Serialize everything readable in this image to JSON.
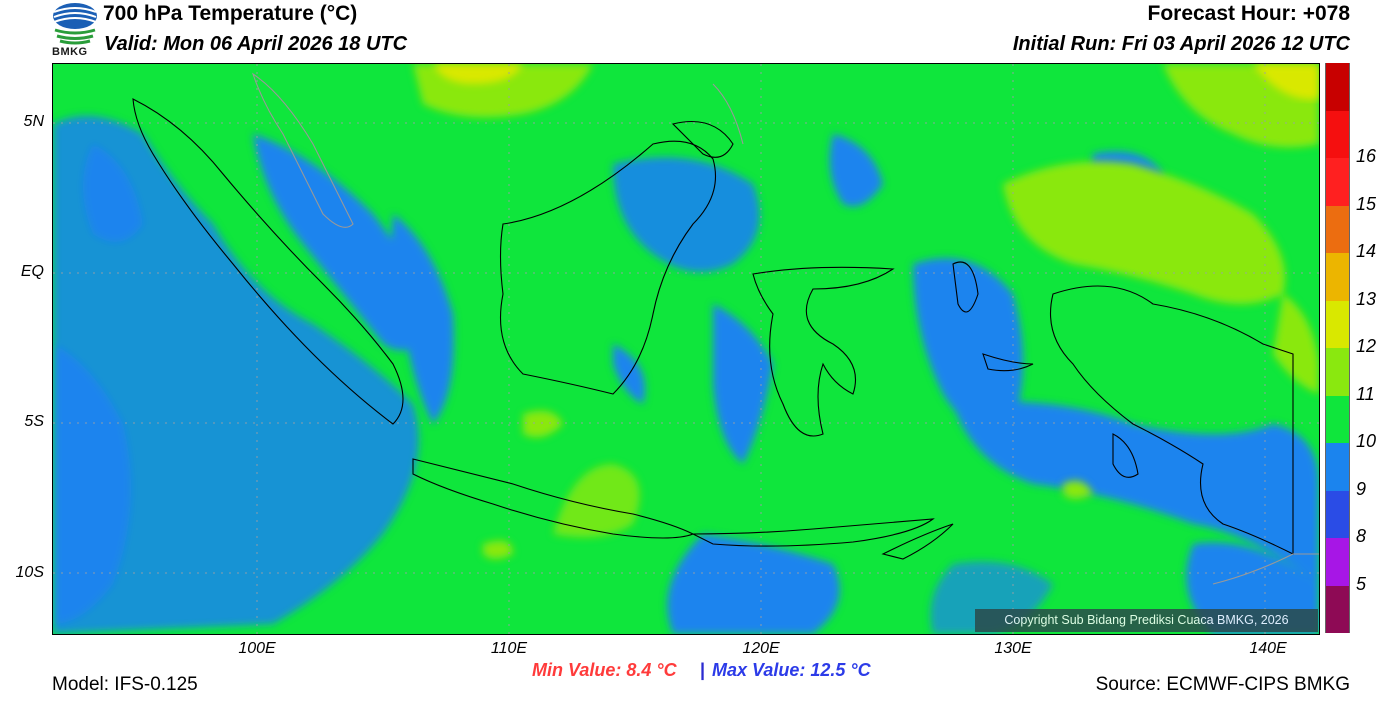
{
  "header": {
    "logo_text": "BMKG",
    "title": "700 hPa Temperature (°C)",
    "valid": "Valid: Mon 06 April 2026 18 UTC",
    "forecast_hour": "Forecast Hour: +078",
    "initial_run": "Initial Run: Fri 03 April 2026 12 UTC"
  },
  "map": {
    "lat_labels": [
      "5N",
      "EQ",
      "5S",
      "10S"
    ],
    "lon_labels": [
      "100E",
      "110E",
      "120E",
      "130E",
      "140E"
    ],
    "copyright": "Copyright Sub Bidang Prediksi Cuaca BMKG, 2026"
  },
  "colorbar": {
    "levels": [
      {
        "label": "",
        "color": "#c80000"
      },
      {
        "label": "16",
        "color": "#f50f0f"
      },
      {
        "label": "15",
        "color": "#ff2020"
      },
      {
        "label": "14",
        "color": "#ec6d10"
      },
      {
        "label": "13",
        "color": "#ecb500"
      },
      {
        "label": "12",
        "color": "#d9e800"
      },
      {
        "label": "11",
        "color": "#8ae80f"
      },
      {
        "label": "10",
        "color": "#0fe63c"
      },
      {
        "label": "9",
        "color": "#1b84ee"
      },
      {
        "label": "8",
        "color": "#2a4ce6"
      },
      {
        "label": "5",
        "color": "#a716e6"
      },
      {
        "label": "",
        "color": "#8e0a55"
      }
    ]
  },
  "footer": {
    "min_value": "Min Value: 8.4 °C",
    "separator": "|",
    "max_value": "Max Value: 12.5 °C",
    "model": "Model: IFS-0.125",
    "source": "Source: ECMWF-CIPS BMKG"
  }
}
